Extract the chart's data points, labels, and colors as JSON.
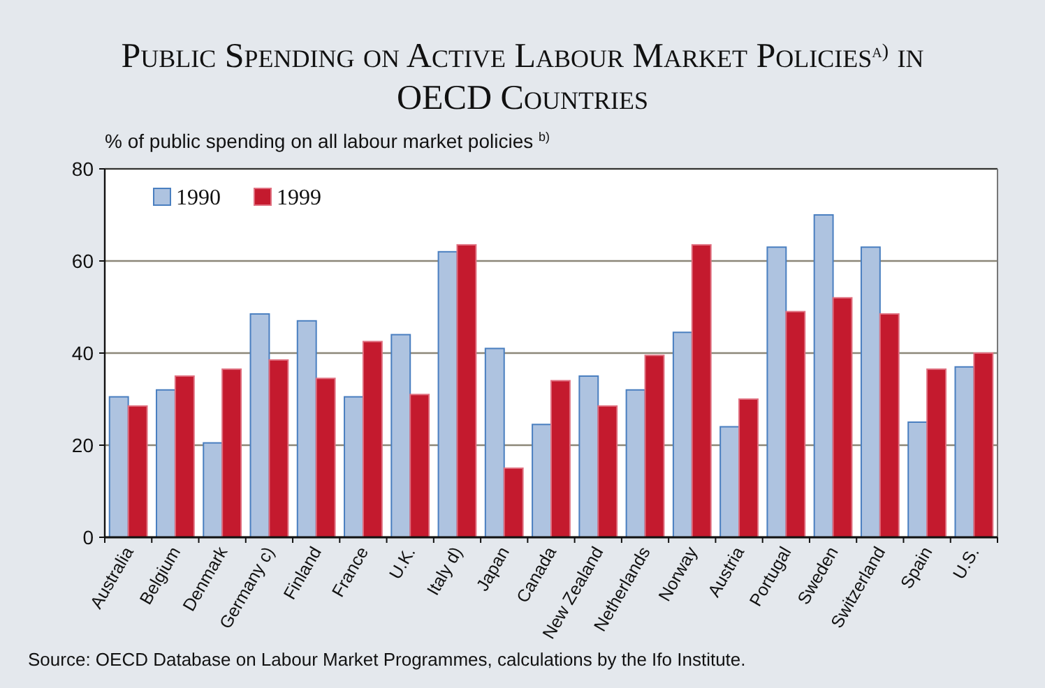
{
  "chart_data": {
    "type": "bar",
    "title": "Public Spending on Active Labour Market Policies$^{a)}$ in OECD Countries",
    "ylabel": "% of public spending on all labour market policies $^{b)}$",
    "categories": [
      "Australia",
      "Belgium",
      "Denmark",
      "Germany c)",
      "Finland",
      "France",
      "U.K.",
      "Italy d)",
      "Japan",
      "Canada",
      "New Zealand",
      "Netherlands",
      "Norway",
      "Austria",
      "Portugal",
      "Sweden",
      "Switzerland",
      "Spain",
      "U.S."
    ],
    "series": [
      {
        "name": "1990",
        "color": "#aec3e0",
        "values": [
          30.5,
          32,
          20.5,
          48.5,
          47,
          30.5,
          44,
          62,
          41,
          24.5,
          35,
          32,
          44.5,
          24,
          63,
          70,
          63,
          25,
          37
        ]
      },
      {
        "name": "1999",
        "color": "#c41a2e",
        "values": [
          28.5,
          35,
          36.5,
          38.5,
          34.5,
          42.5,
          31,
          63.5,
          15,
          34,
          28.5,
          39.5,
          63.5,
          30,
          49,
          52,
          48.5,
          36.5,
          40
        ]
      }
    ],
    "ylim": [
      0,
      80
    ],
    "yticks": [
      0,
      20,
      40,
      60,
      80
    ],
    "grid": "y",
    "legend": "top left",
    "annotations": [
      "Source: OECD Database on Labour Market Programmes, calculations by the Ifo Institute."
    ]
  }
}
